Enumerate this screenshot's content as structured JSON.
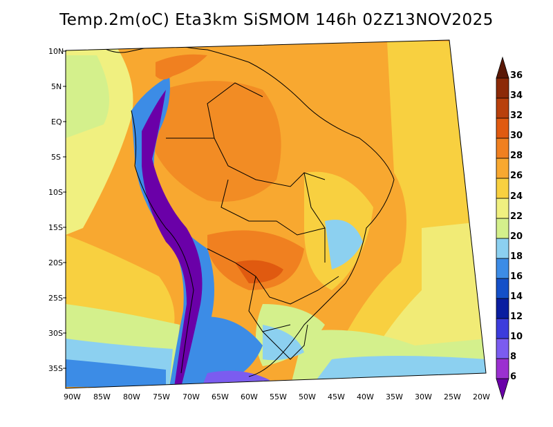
{
  "title": "Temp.2m(oC) Eta3km SiSMOM 146h 02Z13NOV2025",
  "lat_labels": [
    "10N",
    "5N",
    "EQ",
    "5S",
    "10S",
    "15S",
    "20S",
    "25S",
    "30S",
    "35S"
  ],
  "lon_labels": [
    "90W",
    "85W",
    "80W",
    "75W",
    "70W",
    "65W",
    "60W",
    "55W",
    "50W",
    "45W",
    "40W",
    "35W",
    "30W",
    "25W",
    "20W"
  ],
  "colorbar": {
    "labels": [
      "6",
      "8",
      "10",
      "12",
      "14",
      "16",
      "18",
      "20",
      "22",
      "24",
      "26",
      "28",
      "30",
      "32",
      "34",
      "36"
    ],
    "colors": [
      "#6a00a8",
      "#9b30d0",
      "#7b5cf0",
      "#3c3cdc",
      "#0a1ea0",
      "#1450c8",
      "#3c8ce6",
      "#8cd0f0",
      "#d4f08c",
      "#f0f080",
      "#f8d040",
      "#f8a830",
      "#f08020",
      "#e05a10",
      "#b8400c",
      "#8c2a08",
      "#5a1806"
    ]
  },
  "palette": {
    "warm": "#f8a830",
    "hot": "#f08020",
    "mild": "#f8d040",
    "cool": "#f0f080",
    "cold": "#3c8ce6",
    "andes": "#6a00a8",
    "green": "#d4f08c"
  }
}
